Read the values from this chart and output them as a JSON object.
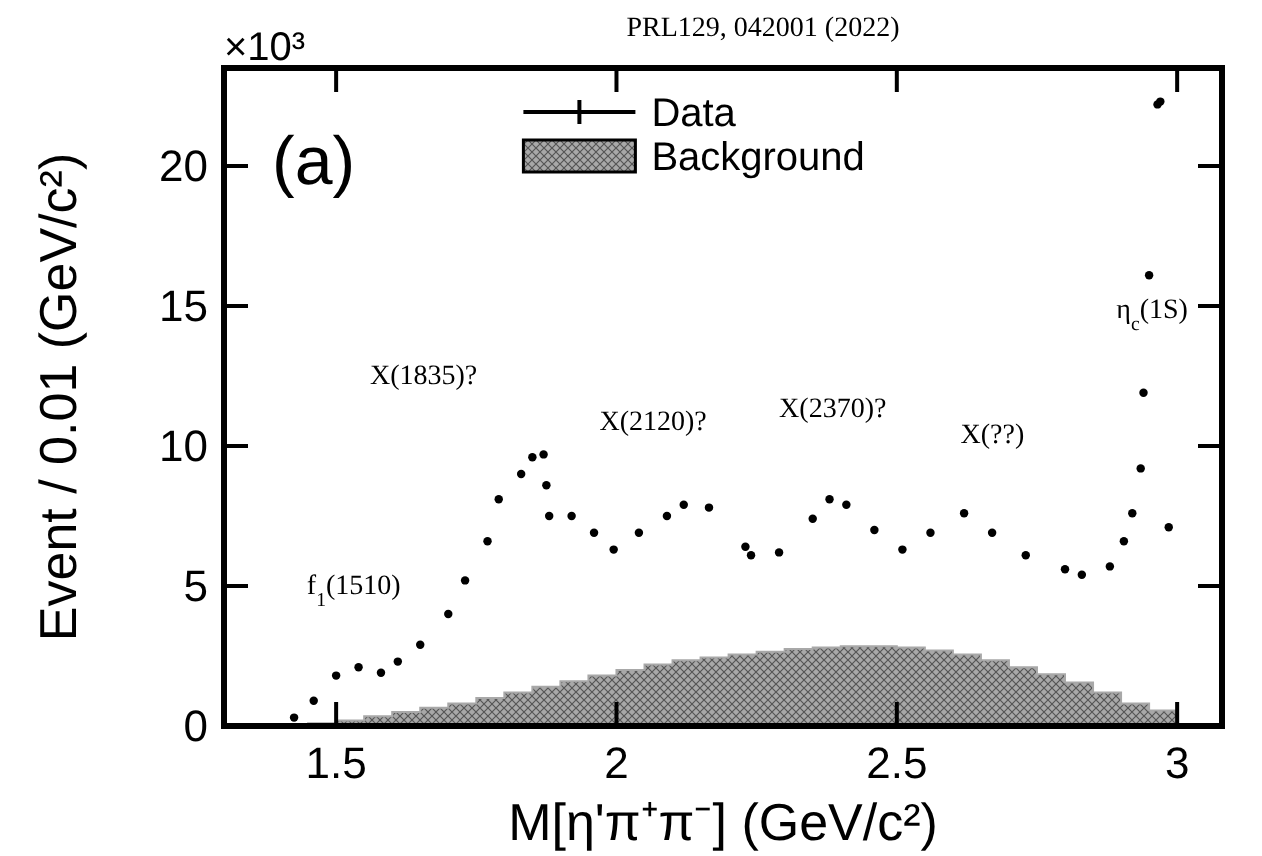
{
  "chart_data": {
    "type": "scatter",
    "title": "PRL129, 042001 (2022)",
    "xlabel": "M[η'π⁺π⁻] (GeV/c²)",
    "ylabel": "Event / 0.01 (GeV/c²)",
    "xlim": [
      1.3,
      3.08
    ],
    "ylim": [
      0,
      23.5
    ],
    "xticks": [
      1.5,
      2,
      2.5,
      3
    ],
    "yticks": [
      0,
      5,
      10,
      15,
      20
    ],
    "legend": "top",
    "series": [
      {
        "name": "Background",
        "type": "area",
        "color": "#a8a8a8",
        "x": [
          1.4,
          1.45,
          1.5,
          1.55,
          1.6,
          1.65,
          1.7,
          1.75,
          1.8,
          1.85,
          1.9,
          1.95,
          2.0,
          2.05,
          2.1,
          2.15,
          2.2,
          2.25,
          2.3,
          2.35,
          2.4,
          2.45,
          2.5,
          2.55,
          2.6,
          2.65,
          2.7,
          2.75,
          2.8,
          2.85,
          2.9,
          2.95,
          3.0
        ],
        "values": [
          0,
          0.1,
          0.2,
          0.35,
          0.5,
          0.65,
          0.8,
          1.0,
          1.2,
          1.4,
          1.6,
          1.8,
          2.0,
          2.2,
          2.35,
          2.45,
          2.55,
          2.65,
          2.75,
          2.8,
          2.85,
          2.85,
          2.8,
          2.7,
          2.55,
          2.35,
          2.1,
          1.85,
          1.55,
          1.2,
          0.8,
          0.55,
          0
        ]
      },
      {
        "name": "Data",
        "color": "#000000",
        "marker": "circle",
        "x": [
          1.425,
          1.46,
          1.5,
          1.54,
          1.58,
          1.61,
          1.65,
          1.7,
          1.73,
          1.77,
          1.79,
          1.83,
          1.85,
          1.87,
          1.875,
          1.88,
          1.92,
          1.96,
          1.995,
          2.04,
          2.09,
          2.12,
          2.165,
          2.23,
          2.24,
          2.29,
          2.35,
          2.38,
          2.41,
          2.46,
          2.51,
          2.56,
          2.62,
          2.67,
          2.73,
          2.8,
          2.83,
          2.88,
          2.905,
          2.92,
          2.935,
          2.94,
          2.95,
          2.965,
          2.97,
          2.985
        ],
        "values": [
          0.3,
          0.9,
          1.8,
          2.1,
          1.9,
          2.3,
          2.9,
          4.0,
          5.2,
          6.6,
          8.1,
          9.0,
          9.6,
          9.7,
          8.6,
          7.5,
          7.5,
          6.9,
          6.3,
          6.9,
          7.5,
          7.9,
          7.8,
          6.4,
          6.1,
          6.2,
          7.4,
          8.1,
          7.9,
          7.0,
          6.3,
          6.9,
          7.6,
          6.9,
          6.1,
          5.6,
          5.4,
          5.7,
          6.6,
          7.6,
          9.2,
          11.9,
          16.1,
          22.2,
          22.3,
          7.1
        ]
      }
    ],
    "annotations": [
      "×10³",
      "(a)",
      "f$_{1}$(1510)",
      "X(1835)?",
      "X(2120)?",
      "X(2370)?",
      "X(??)",
      "η$_{c}$(1S)"
    ]
  }
}
